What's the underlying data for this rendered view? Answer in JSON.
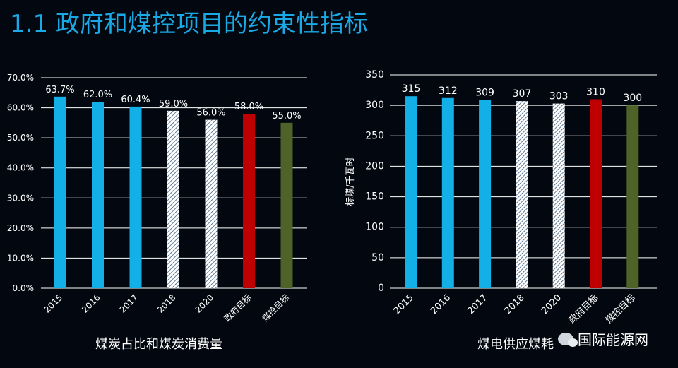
{
  "header": {
    "title": "1.1 政府和煤控项目的约束性指标"
  },
  "chart_data": [
    {
      "type": "bar",
      "title": "煤炭占比和煤炭消费量",
      "ylabel": "",
      "categories": [
        "2015",
        "2016",
        "2017",
        "2018",
        "2020",
        "政府目标",
        "煤控目标"
      ],
      "values": [
        63.7,
        62.0,
        60.4,
        59.0,
        56.0,
        58.0,
        55.0
      ],
      "value_labels": [
        "63.7%",
        "62.0%",
        "60.4%",
        "59.0%",
        "56.0%",
        "58.0%",
        "55.0%"
      ],
      "ylim": [
        0,
        70
      ],
      "yticks": [
        "0.0%",
        "10.0%",
        "20.0%",
        "30.0%",
        "40.0%",
        "50.0%",
        "60.0%",
        "70.0%"
      ],
      "grid": true,
      "bar_styles": [
        "solid-blue",
        "solid-blue",
        "solid-blue",
        "hatched",
        "hatched",
        "solid-red",
        "solid-olive"
      ]
    },
    {
      "type": "bar",
      "title": "煤电供应煤耗",
      "ylabel": "标煤/千瓦时",
      "categories": [
        "2015",
        "2016",
        "2017",
        "2018",
        "2020",
        "政府目标",
        "煤控目标"
      ],
      "values": [
        315,
        312,
        309,
        307,
        303,
        310,
        300
      ],
      "value_labels": [
        "315",
        "312",
        "309",
        "307",
        "303",
        "310",
        "300"
      ],
      "ylim": [
        0,
        350
      ],
      "yticks": [
        "0",
        "50",
        "100",
        "150",
        "200",
        "250",
        "300",
        "350"
      ],
      "grid": true,
      "bar_styles": [
        "solid-blue",
        "solid-blue",
        "solid-blue",
        "hatched",
        "hatched",
        "solid-red",
        "solid-olive"
      ]
    }
  ],
  "colors": {
    "blue": "#12b0e6",
    "red": "#c00000",
    "olive": "#4f6228",
    "grid": "#ffffff",
    "title": "#19a9e6"
  },
  "watermark": {
    "text": "国际能源网",
    "icon": "wechat-icon"
  }
}
